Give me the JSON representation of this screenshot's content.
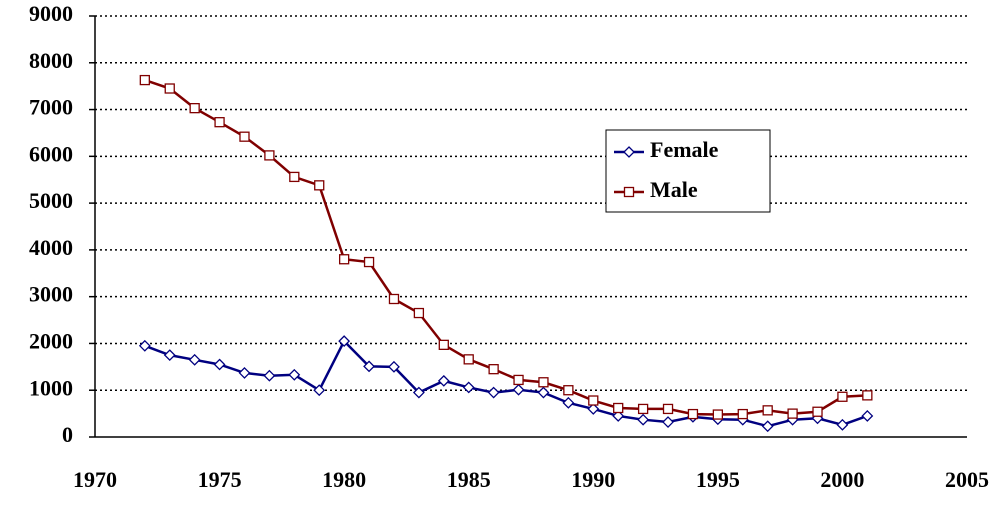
{
  "chart_data": {
    "type": "line",
    "x": [
      1972,
      1973,
      1974,
      1975,
      1976,
      1977,
      1978,
      1979,
      1980,
      1981,
      1982,
      1983,
      1984,
      1985,
      1986,
      1987,
      1988,
      1989,
      1990,
      1991,
      1992,
      1993,
      1994,
      1995,
      1996,
      1997,
      1998,
      1999,
      2000,
      2001
    ],
    "series": [
      {
        "name": "Female",
        "color": "#000080",
        "marker": "diamond",
        "values": [
          1950,
          1750,
          1650,
          1550,
          1370,
          1310,
          1330,
          1000,
          2050,
          1510,
          1500,
          950,
          1200,
          1060,
          950,
          1010,
          950,
          730,
          600,
          450,
          370,
          320,
          430,
          380,
          370,
          230,
          370,
          400,
          260,
          450
        ]
      },
      {
        "name": "Male",
        "color": "#800000",
        "marker": "square",
        "values": [
          7630,
          7450,
          7030,
          6730,
          6420,
          6020,
          5560,
          5380,
          3800,
          3740,
          2950,
          2650,
          1970,
          1660,
          1450,
          1220,
          1170,
          1000,
          780,
          620,
          600,
          600,
          490,
          480,
          490,
          570,
          500,
          540,
          860,
          890
        ]
      }
    ],
    "xlim": [
      1970,
      2005
    ],
    "xticks": [
      1970,
      1975,
      1980,
      1985,
      1990,
      1995,
      2000,
      2005
    ],
    "ylim": [
      0,
      9000
    ],
    "yticks": [
      0,
      1000,
      2000,
      3000,
      4000,
      5000,
      6000,
      7000,
      8000,
      9000
    ],
    "grid": true,
    "legend": "center right"
  }
}
